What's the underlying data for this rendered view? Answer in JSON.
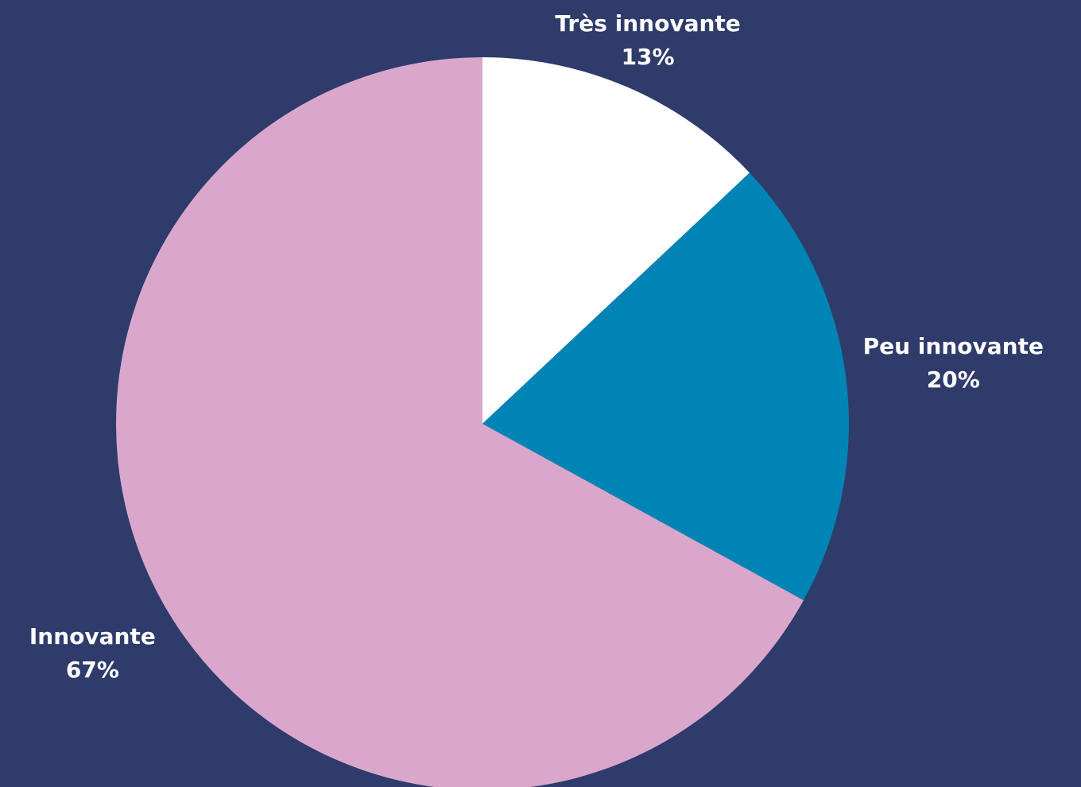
{
  "chart_data": {
    "type": "pie",
    "categories": [
      "Très innovante",
      "Peu innovante",
      "Innovante"
    ],
    "values": [
      13,
      20,
      67
    ],
    "value_labels": [
      "13%",
      "20%",
      "67%"
    ],
    "colors": [
      "#ffffff",
      "#0083b5",
      "#d9a7cb"
    ]
  }
}
